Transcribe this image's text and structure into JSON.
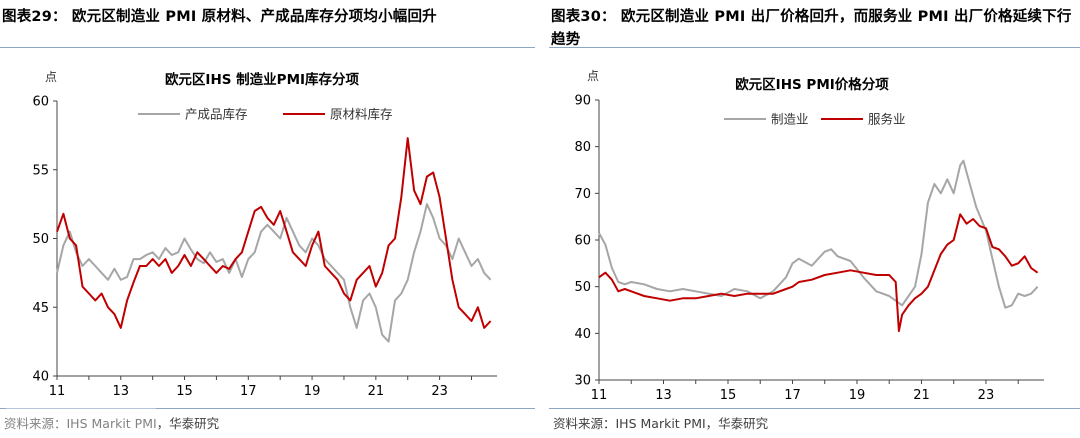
{
  "left": {
    "figure_title": "图表29： 欧元区制造业 PMI 原材料、产成品库存分项均小幅回升",
    "source": "资料来源：IHS Markit PMI，华泰研究",
    "chart_data": {
      "type": "line",
      "title": "欧元区IHS 制造业PMI库存分项",
      "unit": "点",
      "ylim": [
        40,
        60
      ],
      "yticks": [
        "40",
        "45",
        "50",
        "55",
        "60"
      ],
      "xlim": [
        2011.0,
        2024.8
      ],
      "xticks": [
        "11",
        "13",
        "15",
        "17",
        "19",
        "21",
        "23"
      ],
      "series": [
        {
          "name": "产成品库存",
          "color": "#a6a6a6",
          "x": [
            2011.0,
            2011.2,
            2011.4,
            2011.6,
            2011.8,
            2012.0,
            2012.2,
            2012.4,
            2012.6,
            2012.8,
            2013.0,
            2013.2,
            2013.4,
            2013.6,
            2013.8,
            2014.0,
            2014.2,
            2014.4,
            2014.6,
            2014.8,
            2015.0,
            2015.2,
            2015.4,
            2015.6,
            2015.8,
            2016.0,
            2016.2,
            2016.4,
            2016.6,
            2016.8,
            2017.0,
            2017.2,
            2017.4,
            2017.6,
            2017.8,
            2018.0,
            2018.2,
            2018.4,
            2018.6,
            2018.8,
            2019.0,
            2019.2,
            2019.4,
            2019.6,
            2019.8,
            2020.0,
            2020.2,
            2020.4,
            2020.6,
            2020.8,
            2021.0,
            2021.2,
            2021.4,
            2021.6,
            2021.8,
            2022.0,
            2022.2,
            2022.4,
            2022.6,
            2022.8,
            2023.0,
            2023.2,
            2023.4,
            2023.6,
            2023.8,
            2024.0,
            2024.2,
            2024.4,
            2024.6
          ],
          "values": [
            47.5,
            49.5,
            50.5,
            49.0,
            48.0,
            48.5,
            48.0,
            47.5,
            47.0,
            47.8,
            47.0,
            47.2,
            48.5,
            48.5,
            48.8,
            49.0,
            48.5,
            49.3,
            48.8,
            49.0,
            50.0,
            49.2,
            48.5,
            48.2,
            49.0,
            48.3,
            48.5,
            47.5,
            48.5,
            47.2,
            48.5,
            49.0,
            50.5,
            51.0,
            50.5,
            50.0,
            51.5,
            50.5,
            49.5,
            49.0,
            50.0,
            49.5,
            48.5,
            48.0,
            47.5,
            47.0,
            45.0,
            43.5,
            45.5,
            46.0,
            45.0,
            43.0,
            42.5,
            45.5,
            46.0,
            47.0,
            49.0,
            50.5,
            52.5,
            51.5,
            50.0,
            49.5,
            48.5,
            50.0,
            49.0,
            48.0,
            48.5,
            47.5,
            47.0
          ]
        },
        {
          "name": "原材料库存",
          "color": "#c00000",
          "x": [
            2011.0,
            2011.2,
            2011.4,
            2011.6,
            2011.8,
            2012.0,
            2012.2,
            2012.4,
            2012.6,
            2012.8,
            2013.0,
            2013.2,
            2013.4,
            2013.6,
            2013.8,
            2014.0,
            2014.2,
            2014.4,
            2014.6,
            2014.8,
            2015.0,
            2015.2,
            2015.4,
            2015.6,
            2015.8,
            2016.0,
            2016.2,
            2016.4,
            2016.6,
            2016.8,
            2017.0,
            2017.2,
            2017.4,
            2017.6,
            2017.8,
            2018.0,
            2018.2,
            2018.4,
            2018.6,
            2018.8,
            2019.0,
            2019.2,
            2019.4,
            2019.6,
            2019.8,
            2020.0,
            2020.2,
            2020.4,
            2020.6,
            2020.8,
            2021.0,
            2021.2,
            2021.4,
            2021.6,
            2021.8,
            2022.0,
            2022.2,
            2022.4,
            2022.6,
            2022.8,
            2023.0,
            2023.2,
            2023.4,
            2023.6,
            2023.8,
            2024.0,
            2024.2,
            2024.4,
            2024.6
          ],
          "values": [
            50.5,
            51.8,
            50.0,
            49.5,
            46.5,
            46.0,
            45.5,
            46.0,
            45.0,
            44.5,
            43.5,
            45.5,
            46.8,
            48.0,
            48.0,
            48.5,
            48.0,
            48.5,
            47.5,
            48.0,
            48.8,
            48.0,
            49.0,
            48.5,
            48.0,
            47.5,
            48.0,
            47.8,
            48.5,
            49.0,
            50.5,
            52.0,
            52.3,
            51.5,
            51.0,
            52.0,
            50.5,
            49.0,
            48.5,
            48.0,
            49.5,
            50.5,
            48.0,
            47.5,
            47.0,
            46.0,
            45.5,
            47.0,
            47.5,
            48.0,
            46.5,
            47.5,
            49.5,
            50.0,
            53.0,
            57.3,
            53.5,
            52.5,
            54.5,
            54.8,
            53.0,
            50.0,
            47.0,
            45.0,
            44.5,
            44.0,
            45.0,
            43.5,
            44.0
          ]
        }
      ]
    }
  },
  "right": {
    "figure_title": "图表30： 欧元区制造业 PMI 出厂价格回升，而服务业 PMI 出厂价格延续下行趋势",
    "source": "资料来源：IHS Markit PMI，华泰研究",
    "chart_data": {
      "type": "line",
      "title": "欧元区IHS PMI价格分项",
      "unit": "点",
      "ylim": [
        30,
        90
      ],
      "yticks": [
        "30",
        "40",
        "50",
        "60",
        "70",
        "80",
        "90"
      ],
      "xlim": [
        2011.0,
        2024.8
      ],
      "xticks": [
        "11",
        "13",
        "15",
        "17",
        "19",
        "21",
        "23"
      ],
      "series": [
        {
          "name": "制造业",
          "color": "#a6a6a6",
          "x": [
            2011.0,
            2011.2,
            2011.4,
            2011.6,
            2011.8,
            2012.0,
            2012.4,
            2012.8,
            2013.2,
            2013.6,
            2014.0,
            2014.4,
            2014.8,
            2015.2,
            2015.6,
            2016.0,
            2016.4,
            2016.8,
            2017.0,
            2017.2,
            2017.6,
            2018.0,
            2018.2,
            2018.4,
            2018.8,
            2019.2,
            2019.6,
            2020.0,
            2020.2,
            2020.4,
            2020.6,
            2020.8,
            2021.0,
            2021.2,
            2021.4,
            2021.6,
            2021.8,
            2022.0,
            2022.2,
            2022.3,
            2022.5,
            2022.7,
            2023.0,
            2023.2,
            2023.4,
            2023.6,
            2023.8,
            2024.0,
            2024.2,
            2024.4,
            2024.6
          ],
          "values": [
            61.5,
            59.0,
            54.0,
            51.0,
            50.5,
            51.0,
            50.5,
            49.5,
            49.0,
            49.5,
            49.0,
            48.5,
            48.0,
            49.5,
            49.0,
            47.5,
            49.0,
            52.0,
            55.0,
            56.0,
            54.5,
            57.5,
            58.0,
            56.5,
            55.5,
            52.0,
            49.0,
            48.0,
            47.0,
            46.0,
            48.0,
            50.0,
            57.0,
            68.0,
            72.0,
            70.0,
            73.0,
            70.0,
            76.0,
            77.0,
            72.0,
            67.0,
            62.0,
            56.0,
            50.0,
            45.5,
            46.0,
            48.5,
            48.0,
            48.5,
            50.0
          ]
        },
        {
          "name": "服务业",
          "color": "#c00000",
          "x": [
            2011.0,
            2011.2,
            2011.4,
            2011.6,
            2011.8,
            2012.0,
            2012.4,
            2012.8,
            2013.2,
            2013.6,
            2014.0,
            2014.4,
            2014.8,
            2015.2,
            2015.6,
            2016.0,
            2016.4,
            2016.8,
            2017.0,
            2017.2,
            2017.6,
            2018.0,
            2018.4,
            2018.8,
            2019.2,
            2019.6,
            2020.0,
            2020.2,
            2020.3,
            2020.4,
            2020.6,
            2020.8,
            2021.0,
            2021.2,
            2021.4,
            2021.6,
            2021.8,
            2022.0,
            2022.2,
            2022.4,
            2022.6,
            2022.8,
            2023.0,
            2023.2,
            2023.4,
            2023.6,
            2023.8,
            2024.0,
            2024.2,
            2024.4,
            2024.6
          ],
          "values": [
            52.0,
            53.0,
            51.5,
            49.0,
            49.5,
            49.0,
            48.0,
            47.5,
            47.0,
            47.5,
            47.5,
            48.0,
            48.5,
            48.0,
            48.5,
            48.5,
            48.5,
            49.5,
            50.0,
            51.0,
            51.5,
            52.5,
            53.0,
            53.5,
            53.0,
            52.5,
            52.5,
            51.0,
            40.5,
            44.0,
            46.0,
            47.5,
            48.5,
            50.0,
            53.5,
            57.0,
            59.0,
            60.0,
            65.5,
            63.5,
            64.5,
            63.0,
            62.5,
            58.5,
            58.0,
            56.5,
            54.5,
            55.0,
            56.5,
            54.0,
            53.0
          ]
        }
      ]
    }
  }
}
